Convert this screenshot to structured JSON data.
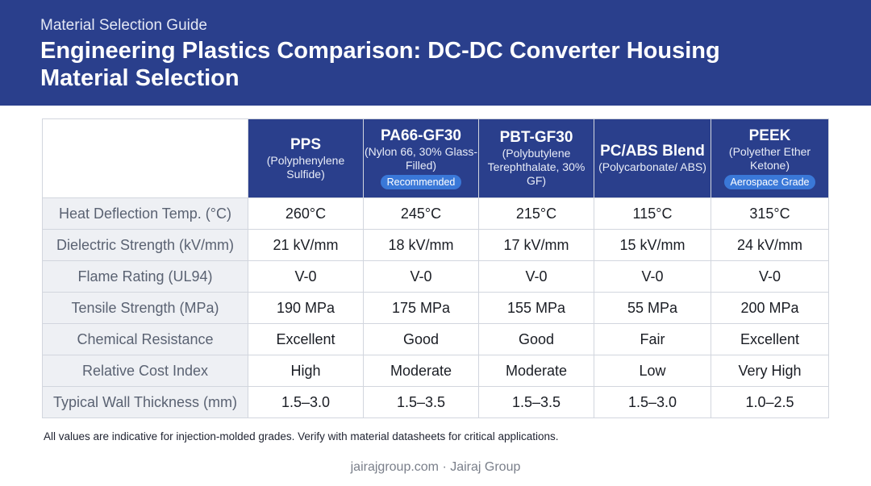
{
  "header": {
    "eyebrow": "Material Selection Guide",
    "title": "Engineering Plastics Comparison: DC-DC Converter Housing Material Selection",
    "bg_color": "#2a3f8c"
  },
  "columns": [
    {
      "name": "PPS",
      "subtitle": "(Polyphenylene Sulfide)",
      "badge": ""
    },
    {
      "name": "PA66-GF30",
      "subtitle": "(Nylon 66, 30% Glass-Filled)",
      "badge": "Recommended"
    },
    {
      "name": "PBT-GF30",
      "subtitle": "(Polybutylene Terephthalate, 30% GF)",
      "badge": ""
    },
    {
      "name": "PC/ABS Blend",
      "subtitle": "(Polycarbonate/ ABS)",
      "badge": ""
    },
    {
      "name": "PEEK",
      "subtitle": "(Polyether Ether Ketone)",
      "badge": "Aerospace Grade"
    }
  ],
  "rows": [
    {
      "property": "Heat Deflection Temp. (°C)",
      "values": [
        "260°C",
        "245°C",
        "215°C",
        "115°C",
        "315°C"
      ]
    },
    {
      "property": "Dielectric Strength (kV/mm)",
      "values": [
        "21 kV/mm",
        "18 kV/mm",
        "17 kV/mm",
        "15 kV/mm",
        "24 kV/mm"
      ]
    },
    {
      "property": "Flame Rating (UL94)",
      "values": [
        "V-0",
        "V-0",
        "V-0",
        "V-0",
        "V-0"
      ]
    },
    {
      "property": "Tensile Strength (MPa)",
      "values": [
        "190 MPa",
        "175 MPa",
        "155 MPa",
        "55 MPa",
        "200 MPa"
      ]
    },
    {
      "property": "Chemical Resistance",
      "values": [
        "Excellent",
        "Good",
        "Good",
        "Fair",
        "Excellent"
      ]
    },
    {
      "property": "Relative Cost Index",
      "values": [
        "High",
        "Moderate",
        "Moderate",
        "Low",
        "Very High"
      ]
    },
    {
      "property": "Typical Wall Thickness (mm)",
      "values": [
        "1.5–3.0",
        "1.5–3.5",
        "1.5–3.5",
        "1.5–3.0",
        "1.0–2.5"
      ]
    }
  ],
  "note": "All values are indicative for injection-molded grades. Verify with material datasheets for critical applications.",
  "footer": "jairajgroup.com · Jairaj Group"
}
